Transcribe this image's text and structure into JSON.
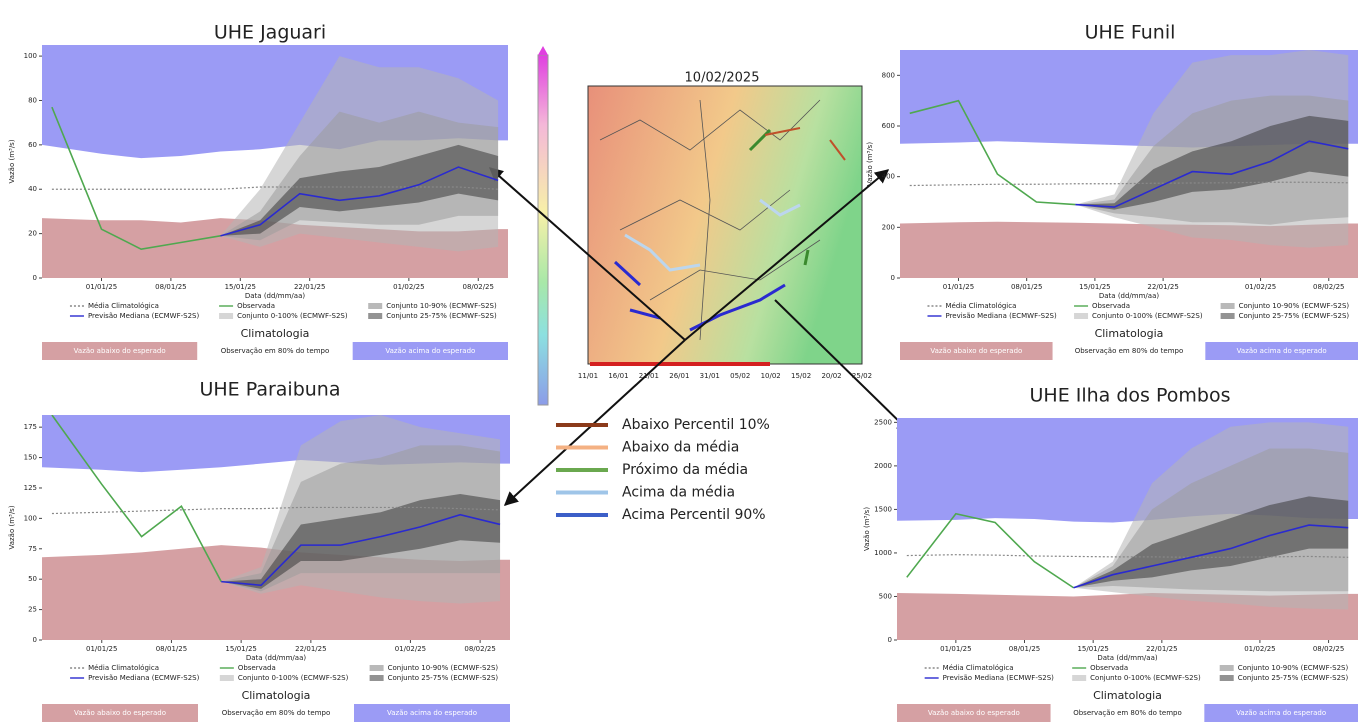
{
  "chart_data": [
    {
      "type": "line",
      "title": "UHE Jaguari",
      "ylabel": "Vazão (m³/s)",
      "xlabel": "Data (dd/mm/aa)",
      "x": [
        "27/12/24",
        "01/01/25",
        "05/01/25",
        "09/01/25",
        "13/01/25",
        "17/01/25",
        "21/01/25",
        "25/01/25",
        "29/01/25",
        "02/02/25",
        "06/02/25",
        "10/02/25"
      ],
      "xlim": [
        "26/12/24",
        "11/02/25"
      ],
      "xticks": [
        "01/01/25",
        "08/01/25",
        "15/01/25",
        "22/01/25",
        "01/02/25",
        "08/02/25"
      ],
      "ylim": [
        0,
        105
      ],
      "yticks": [
        0,
        20,
        40,
        60,
        80,
        100
      ],
      "series": [
        {
          "name": "Média Climatológica",
          "color": "#888888",
          "style": "dotted",
          "values": [
            40,
            40,
            40,
            40,
            40,
            41,
            41,
            41,
            41,
            41,
            41,
            40
          ]
        },
        {
          "name": "Observada",
          "color": "#4fa84f",
          "values": [
            77,
            22,
            13,
            16,
            19,
            null,
            null,
            null,
            null,
            null,
            null,
            null
          ]
        },
        {
          "name": "Conjunto 10-90% (ECMWF-S2S)",
          "color": "#808080",
          "low": [
            null,
            null,
            null,
            null,
            19,
            17,
            26,
            25,
            24,
            24,
            28,
            28
          ],
          "high": [
            null,
            null,
            null,
            null,
            19,
            30,
            55,
            75,
            70,
            75,
            70,
            68
          ]
        },
        {
          "name": "Previsão Mediana (ECMWF-S2S)",
          "color": "#2a2ad0",
          "values": [
            null,
            null,
            null,
            null,
            19,
            24,
            38,
            35,
            37,
            42,
            50,
            44
          ]
        },
        {
          "name": "Conjunto 0-100% (ECMWF-S2S)",
          "color": "#b4b4b4",
          "low": [
            null,
            null,
            null,
            null,
            19,
            14,
            20,
            18,
            16,
            14,
            12,
            14
          ],
          "high": [
            null,
            null,
            null,
            null,
            19,
            40,
            70,
            100,
            95,
            95,
            90,
            80
          ]
        },
        {
          "name": "Conjunto 25-75% (ECMWF-S2S)",
          "color": "#3a3a3a",
          "low": [
            null,
            null,
            null,
            null,
            19,
            20,
            32,
            30,
            32,
            34,
            38,
            35
          ],
          "high": [
            null,
            null,
            null,
            null,
            19,
            26,
            45,
            48,
            50,
            55,
            60,
            55
          ]
        }
      ],
      "climatology": {
        "title": "Climatologia",
        "p10": [
          27,
          26,
          26,
          25,
          27,
          26,
          24,
          23,
          22,
          21,
          21,
          22
        ],
        "p90": [
          60,
          56,
          54,
          55,
          57,
          58,
          60,
          58,
          62,
          62,
          63,
          62
        ],
        "bands": [
          {
            "label": "Vazão abaixo do esperado",
            "color": "#d5a0a3"
          },
          {
            "label": "Observação em 80% do tempo",
            "color": "#ffffff"
          },
          {
            "label": "Vazão acima do esperado",
            "color": "#9b9bf5"
          }
        ]
      }
    },
    {
      "type": "line",
      "title": "UHE Funil",
      "ylabel": "Vazão (m³/s)",
      "xlabel": "Data (dd/mm/aa)",
      "x": [
        "27/12/24",
        "01/01/25",
        "05/01/25",
        "09/01/25",
        "13/01/25",
        "17/01/25",
        "21/01/25",
        "25/01/25",
        "29/01/25",
        "02/02/25",
        "06/02/25",
        "10/02/25"
      ],
      "xlim": [
        "26/12/24",
        "11/02/25"
      ],
      "xticks": [
        "01/01/25",
        "08/01/25",
        "15/01/25",
        "22/01/25",
        "01/02/25",
        "08/02/25"
      ],
      "ylim": [
        0,
        900
      ],
      "yticks": [
        0,
        200,
        400,
        600,
        800
      ],
      "series": [
        {
          "name": "Média Climatológica",
          "color": "#888888",
          "style": "dotted",
          "values": [
            365,
            368,
            370,
            370,
            372,
            372,
            374,
            375,
            376,
            378,
            378,
            376
          ]
        },
        {
          "name": "Observada",
          "color": "#4fa84f",
          "values": [
            650,
            700,
            410,
            300,
            290,
            null,
            null,
            null,
            null,
            null,
            null,
            null
          ]
        },
        {
          "name": "Conjunto 10-90% (ECMWF-S2S)",
          "color": "#808080",
          "low": [
            null,
            null,
            null,
            null,
            290,
            255,
            240,
            220,
            220,
            210,
            230,
            240
          ],
          "high": [
            null,
            null,
            null,
            null,
            290,
            310,
            520,
            650,
            700,
            720,
            720,
            700
          ]
        },
        {
          "name": "Previsão Mediana (ECMWF-S2S)",
          "color": "#2a2ad0",
          "values": [
            null,
            null,
            null,
            null,
            290,
            280,
            350,
            420,
            410,
            460,
            540,
            510
          ]
        },
        {
          "name": "Conjunto 0-100% (ECMWF-S2S)",
          "color": "#b4b4b4",
          "low": [
            null,
            null,
            null,
            null,
            290,
            240,
            200,
            160,
            150,
            130,
            120,
            130
          ],
          "high": [
            null,
            null,
            null,
            null,
            290,
            330,
            650,
            850,
            880,
            880,
            900,
            880
          ]
        },
        {
          "name": "Conjunto 25-75% (ECMWF-S2S)",
          "color": "#3a3a3a",
          "low": [
            null,
            null,
            null,
            null,
            290,
            270,
            300,
            340,
            350,
            380,
            420,
            400
          ],
          "high": [
            null,
            null,
            null,
            null,
            290,
            295,
            430,
            500,
            540,
            600,
            640,
            620
          ]
        }
      ],
      "climatology": {
        "title": "Climatologia",
        "p10": [
          215,
          220,
          222,
          220,
          218,
          215,
          212,
          210,
          208,
          205,
          210,
          215
        ],
        "p90": [
          530,
          535,
          540,
          535,
          530,
          525,
          520,
          515,
          520,
          525,
          530,
          530
        ],
        "bands": [
          {
            "label": "Vazão abaixo do esperado",
            "color": "#d5a0a3"
          },
          {
            "label": "Observação em 80% do tempo",
            "color": "#ffffff"
          },
          {
            "label": "Vazão acima do esperado",
            "color": "#9b9bf5"
          }
        ]
      }
    },
    {
      "type": "line",
      "title": "UHE Paraibuna",
      "ylabel": "Vazão (m³/s)",
      "xlabel": "Data (dd/mm/aa)",
      "x": [
        "27/12/24",
        "01/01/25",
        "05/01/25",
        "09/01/25",
        "13/01/25",
        "17/01/25",
        "21/01/25",
        "25/01/25",
        "29/01/25",
        "02/02/25",
        "06/02/25",
        "10/02/25"
      ],
      "xlim": [
        "26/12/24",
        "11/02/25"
      ],
      "xticks": [
        "01/01/25",
        "08/01/25",
        "15/01/25",
        "22/01/25",
        "01/02/25",
        "08/02/25"
      ],
      "ylim": [
        0,
        185
      ],
      "yticks": [
        0,
        25,
        50,
        75,
        100,
        125,
        150,
        175
      ],
      "series": [
        {
          "name": "Média Climatológica",
          "color": "#888888",
          "style": "dotted",
          "values": [
            104,
            105,
            106,
            107,
            108,
            108,
            109,
            109,
            109,
            109,
            108,
            107
          ]
        },
        {
          "name": "Observada",
          "color": "#4fa84f",
          "values": [
            185,
            128,
            85,
            110,
            48,
            null,
            null,
            null,
            null,
            null,
            null,
            null
          ]
        },
        {
          "name": "Conjunto 10-90% (ECMWF-S2S)",
          "color": "#808080",
          "low": [
            null,
            null,
            null,
            null,
            48,
            40,
            55,
            55,
            55,
            55,
            55,
            55
          ],
          "high": [
            null,
            null,
            null,
            null,
            48,
            55,
            130,
            145,
            150,
            160,
            160,
            155
          ]
        },
        {
          "name": "Previsão Mediana (ECMWF-S2S)",
          "color": "#2a2ad0",
          "values": [
            null,
            null,
            null,
            null,
            48,
            45,
            78,
            78,
            85,
            93,
            103,
            95
          ]
        },
        {
          "name": "Conjunto 0-100% (ECMWF-S2S)",
          "color": "#b4b4b4",
          "low": [
            null,
            null,
            null,
            null,
            48,
            38,
            45,
            40,
            35,
            32,
            30,
            32
          ],
          "high": [
            null,
            null,
            null,
            null,
            48,
            60,
            160,
            180,
            185,
            175,
            170,
            165
          ]
        },
        {
          "name": "Conjunto 25-75% (ECMWF-S2S)",
          "color": "#3a3a3a",
          "low": [
            null,
            null,
            null,
            null,
            48,
            42,
            65,
            65,
            70,
            75,
            82,
            80
          ],
          "high": [
            null,
            null,
            null,
            null,
            48,
            50,
            95,
            100,
            105,
            115,
            120,
            115
          ]
        }
      ],
      "climatology": {
        "title": "Climatologia",
        "p10": [
          68,
          70,
          72,
          75,
          78,
          76,
          72,
          70,
          68,
          66,
          65,
          66
        ],
        "p90": [
          142,
          140,
          138,
          140,
          142,
          145,
          148,
          146,
          144,
          145,
          146,
          145
        ],
        "bands": [
          {
            "label": "Vazão abaixo do esperado",
            "color": "#d5a0a3"
          },
          {
            "label": "Observação em 80% do tempo",
            "color": "#ffffff"
          },
          {
            "label": "Vazão acima do esperado",
            "color": "#9b9bf5"
          }
        ]
      }
    },
    {
      "type": "line",
      "title": "UHE Ilha dos Pombos",
      "ylabel": "Vazão (m³/s)",
      "xlabel": "Data (dd/mm/aa)",
      "x": [
        "27/12/24",
        "01/01/25",
        "05/01/25",
        "09/01/25",
        "13/01/25",
        "17/01/25",
        "21/01/25",
        "25/01/25",
        "29/01/25",
        "02/02/25",
        "06/02/25",
        "10/02/25"
      ],
      "xlim": [
        "26/12/24",
        "11/02/25"
      ],
      "xticks": [
        "01/01/25",
        "08/01/25",
        "15/01/25",
        "22/01/25",
        "01/02/25",
        "08/02/25"
      ],
      "ylim": [
        0,
        2550
      ],
      "yticks": [
        0,
        500,
        1000,
        1500,
        2000,
        2500
      ],
      "series": [
        {
          "name": "Média Climatológica",
          "color": "#888888",
          "style": "dotted",
          "values": [
            970,
            980,
            975,
            965,
            960,
            955,
            955,
            950,
            950,
            955,
            960,
            950
          ]
        },
        {
          "name": "Observada",
          "color": "#4fa84f",
          "values": [
            720,
            1450,
            1350,
            900,
            600,
            null,
            null,
            null,
            null,
            null,
            null,
            null
          ]
        },
        {
          "name": "Conjunto 10-90% (ECMWF-S2S)",
          "color": "#808080",
          "low": [
            null,
            null,
            null,
            null,
            600,
            620,
            600,
            580,
            570,
            560,
            560,
            560
          ],
          "high": [
            null,
            null,
            null,
            null,
            600,
            850,
            1500,
            1800,
            2000,
            2200,
            2200,
            2150
          ]
        },
        {
          "name": "Previsão Mediana (ECMWF-S2S)",
          "color": "#2a2ad0",
          "values": [
            null,
            null,
            null,
            null,
            600,
            750,
            850,
            950,
            1050,
            1200,
            1320,
            1290
          ]
        },
        {
          "name": "Conjunto 0-100% (ECMWF-S2S)",
          "color": "#b4b4b4",
          "low": [
            null,
            null,
            null,
            null,
            600,
            550,
            500,
            450,
            420,
            380,
            360,
            350
          ],
          "high": [
            null,
            null,
            null,
            null,
            600,
            900,
            1800,
            2200,
            2450,
            2500,
            2500,
            2450
          ]
        },
        {
          "name": "Conjunto 25-75% (ECMWF-S2S)",
          "color": "#3a3a3a",
          "low": [
            null,
            null,
            null,
            null,
            600,
            680,
            720,
            800,
            850,
            950,
            1050,
            1050
          ],
          "high": [
            null,
            null,
            null,
            null,
            600,
            800,
            1100,
            1250,
            1400,
            1550,
            1650,
            1600
          ]
        }
      ],
      "climatology": {
        "title": "Climatologia",
        "p10": [
          540,
          530,
          520,
          510,
          500,
          520,
          540,
          530,
          520,
          510,
          520,
          530
        ],
        "p90": [
          1370,
          1380,
          1400,
          1390,
          1360,
          1350,
          1380,
          1420,
          1450,
          1430,
          1400,
          1390
        ],
        "bands": [
          {
            "label": "Vazão abaixo do esperado",
            "color": "#d5a0a3"
          },
          {
            "label": "Observação em 80% do tempo",
            "color": "#ffffff"
          },
          {
            "label": "Vazão acima do esperado",
            "color": "#9b9bf5"
          }
        ]
      }
    }
  ],
  "map": {
    "title": "10/02/2025",
    "timeline": [
      "11/01",
      "16/01",
      "21/01",
      "26/01",
      "31/01",
      "05/02",
      "10/02",
      "15/02",
      "20/02",
      "25/02"
    ],
    "legend": [
      {
        "label": "Abaixo Percentil 10%",
        "color": "#8b3a1a"
      },
      {
        "label": "Abaixo da média",
        "color": "#f4b183"
      },
      {
        "label": "Próximo da média",
        "color": "#6aa84f"
      },
      {
        "label": "Acima da média",
        "color": "#9fc5e8"
      },
      {
        "label": "Acima Percentil 90%",
        "color": "#3c5fc8"
      }
    ]
  }
}
